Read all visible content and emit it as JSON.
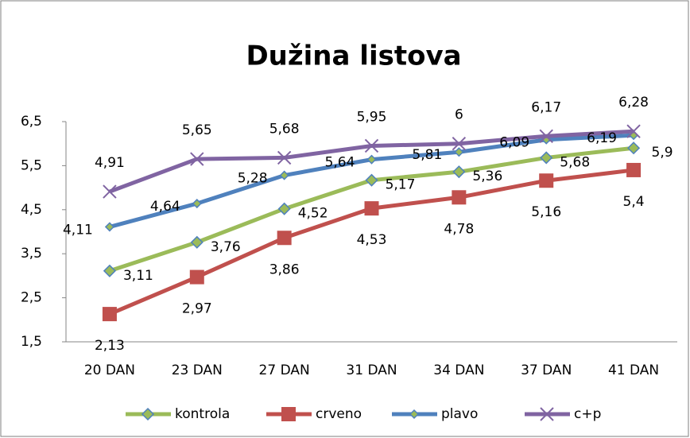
{
  "chart_data": {
    "type": "line",
    "title": "Dužina listova",
    "categories": [
      "20 DAN",
      "23 DAN",
      "27 DAN",
      "31 DAN",
      "34 DAN",
      "37 DAN",
      "41 DAN"
    ],
    "series": [
      {
        "name": "kontrola",
        "color": "#9bbb59",
        "marker": "diamond",
        "values": [
          3.11,
          3.76,
          4.52,
          5.17,
          5.36,
          5.68,
          5.9
        ],
        "value_labels": [
          "3,11",
          "3,76",
          "4,52",
          "5,17",
          "5,36",
          "5,68",
          "5,9"
        ]
      },
      {
        "name": "crveno",
        "color": "#c0504d",
        "marker": "square",
        "values": [
          2.13,
          2.97,
          3.86,
          4.53,
          4.78,
          5.16,
          5.4
        ],
        "value_labels": [
          "2,13",
          "2,97",
          "3,86",
          "4,53",
          "4,78",
          "5,16",
          "5,4"
        ]
      },
      {
        "name": "plavo",
        "color": "#4f81bd",
        "marker": "small-diamond",
        "values": [
          4.11,
          4.64,
          5.28,
          5.64,
          5.81,
          6.09,
          6.19
        ],
        "value_labels": [
          "4,11",
          "4,64",
          "5,28",
          "5,64",
          "5,81",
          "6,09",
          "6,19"
        ]
      },
      {
        "name": "c+p",
        "color": "#8064a2",
        "marker": "x",
        "values": [
          4.91,
          5.65,
          5.68,
          5.95,
          6,
          6.17,
          6.28
        ],
        "value_labels": [
          "4,91",
          "5,65",
          "5,68",
          "5,95",
          "6",
          "6,17",
          "6,28"
        ]
      }
    ],
    "ylim": [
      1.5,
      6.5
    ],
    "yticks": [
      {
        "value": 1.5,
        "label": "1,5"
      },
      {
        "value": 2.5,
        "label": "2,5"
      },
      {
        "value": 3.5,
        "label": "3,5"
      },
      {
        "value": 4.5,
        "label": "4,5"
      },
      {
        "value": 5.5,
        "label": "5,5"
      },
      {
        "value": 6.5,
        "label": "6,5"
      }
    ],
    "grid": false,
    "legend": "bottom"
  }
}
